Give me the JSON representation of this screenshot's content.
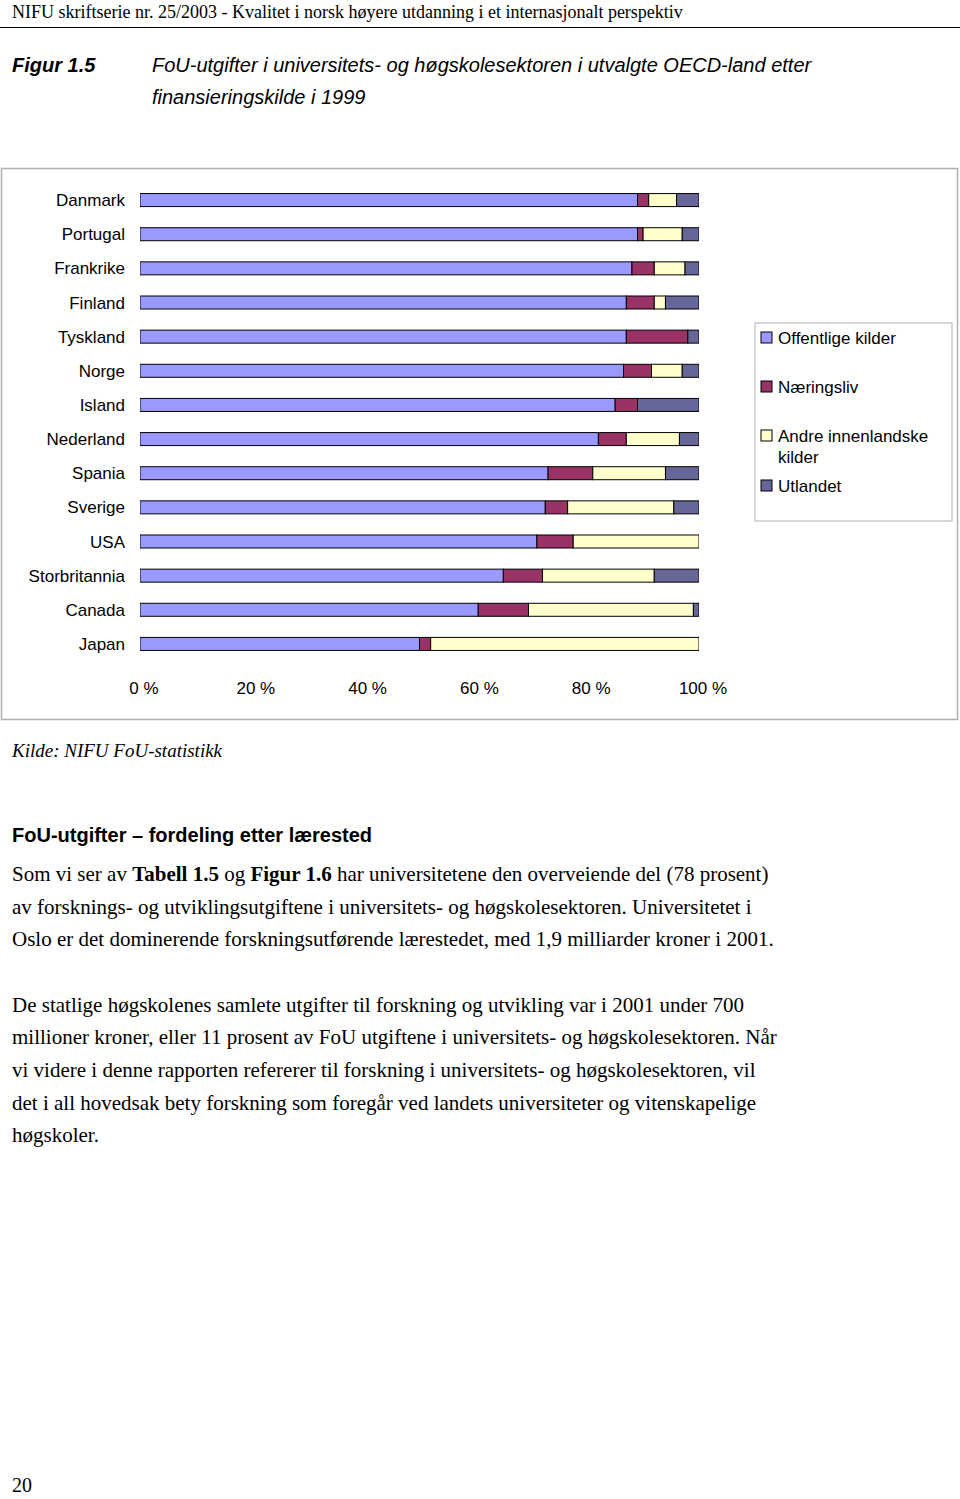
{
  "header": "NIFU skriftserie nr. 25/2003 - Kvalitet i norsk høyere utdanning i et internasjonalt perspektiv",
  "figure": {
    "label": "Figur 1.5",
    "caption_lines": [
      "FoU-utgifter i universitets- og høgskolesektoren i utvalgte OECD-land etter",
      "finansieringskilde i 1999"
    ]
  },
  "chart_data": {
    "type": "bar",
    "orientation": "horizontal",
    "stacked": true,
    "legend": "right",
    "categories": [
      "Danmark",
      "Portugal",
      "Frankrike",
      "Finland",
      "Tyskland",
      "Norge",
      "Island",
      "Nederland",
      "Spania",
      "Sverige",
      "USA",
      "Storbritannia",
      "Canada",
      "Japan"
    ],
    "series": [
      {
        "name": "Offentlige kilder",
        "color": "#9999ff",
        "values": [
          89,
          89,
          88,
          87,
          87,
          86.5,
          85,
          82,
          73,
          72.5,
          71,
          65,
          60.5,
          50
        ]
      },
      {
        "name": "Næringsliv",
        "color": "#993366",
        "values": [
          2,
          1,
          4,
          5,
          11,
          5,
          4,
          5,
          8,
          4,
          6.5,
          7,
          9,
          2
        ]
      },
      {
        "name": "Andre innenlandske kilder",
        "color": "#ffffcc",
        "values": [
          5,
          7,
          5.5,
          2,
          0,
          5.5,
          0,
          9.5,
          13,
          19,
          22.5,
          20,
          29.5,
          48
        ]
      },
      {
        "name": "Utlandet",
        "color": "#666699",
        "values": [
          4,
          3,
          2.5,
          6,
          2,
          3,
          11,
          3.5,
          6,
          4.5,
          0,
          8,
          1,
          0
        ]
      }
    ],
    "xlim": [
      0,
      100
    ],
    "xticks": [
      {
        "value": 0,
        "label": "0 %"
      },
      {
        "value": 20,
        "label": "20 %"
      },
      {
        "value": 40,
        "label": "40 %"
      },
      {
        "value": 60,
        "label": "60 %"
      },
      {
        "value": 80,
        "label": "80 %"
      },
      {
        "value": 100,
        "label": "100 %"
      }
    ],
    "grid": false
  },
  "source": "Kilde: NIFU FoU-statistikk",
  "section": {
    "heading": "FoU-utgifter – fordeling etter lærested",
    "paragraphs": [
      [
        [
          {
            "text": "Som vi ser av ",
            "bold": false
          },
          {
            "text": "Tabell 1.5",
            "bold": true
          },
          {
            "text": " og ",
            "bold": false
          },
          {
            "text": "Figur 1.6",
            "bold": true
          },
          {
            "text": " har universitetene den overveiende del (78 prosent)",
            "bold": false
          }
        ],
        [
          {
            "text": "av forsknings- og utviklingsutgiftene i universitets- og høgskolesektoren. Universitetet i",
            "bold": false
          }
        ],
        [
          {
            "text": "Oslo er det dominerende forskningsutførende lærestedet, med 1,9 milliarder kroner i 2001.",
            "bold": false
          }
        ]
      ],
      [
        [
          {
            "text": "De statlige høgskolenes samlete utgifter til forskning og utvikling var i 2001 under 700",
            "bold": false
          }
        ],
        [
          {
            "text": "millioner kroner, eller 11 prosent av FoU utgiftene i universitets- og høgskolesektoren. Når",
            "bold": false
          }
        ],
        [
          {
            "text": "vi videre i denne rapporten refererer til forskning i universitets- og høgskolesektoren, vil",
            "bold": false
          }
        ],
        [
          {
            "text": "det i all hovedsak bety forskning som foregår ved landets universiteter og vitenskapelige",
            "bold": false
          }
        ],
        [
          {
            "text": "høgskoler.",
            "bold": false
          }
        ]
      ]
    ]
  },
  "page_number": "20"
}
